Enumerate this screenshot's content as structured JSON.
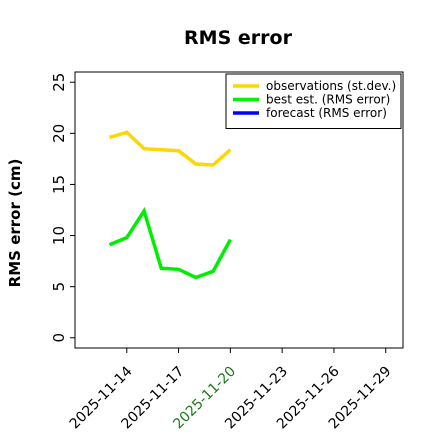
{
  "chart_data": {
    "type": "line",
    "title": "RMS error",
    "xlabel": "",
    "ylabel": "RMS error (cm)",
    "ylim": [
      -1,
      26
    ],
    "yticks": [
      0,
      5,
      10,
      15,
      20,
      25
    ],
    "xlim": [
      "2025-11-11",
      "2025-11-30"
    ],
    "xticks": [
      {
        "label": "2025-11-14",
        "color": "#000000"
      },
      {
        "label": "2025-11-17",
        "color": "#000000"
      },
      {
        "label": "2025-11-20",
        "color": "#1a7a1a"
      },
      {
        "label": "2025-11-23",
        "color": "#000000"
      },
      {
        "label": "2025-11-26",
        "color": "#000000"
      },
      {
        "label": "2025-11-29",
        "color": "#000000"
      }
    ],
    "grid": false,
    "legend_position": "top-right",
    "series": [
      {
        "name": "observations (st.dev.)",
        "color": "#FFD700",
        "x": [
          "2025-11-13",
          "2025-11-14",
          "2025-11-15",
          "2025-11-16",
          "2025-11-17",
          "2025-11-18",
          "2025-11-19",
          "2025-11-20"
        ],
        "values": [
          19.6,
          20.1,
          18.5,
          18.4,
          18.3,
          17.0,
          16.9,
          18.4
        ]
      },
      {
        "name": "best est. (RMS error)",
        "color": "#00EE00",
        "x": [
          "2025-11-13",
          "2025-11-14",
          "2025-11-15",
          "2025-11-16",
          "2025-11-17",
          "2025-11-18",
          "2025-11-19",
          "2025-11-20"
        ],
        "values": [
          9.1,
          9.8,
          12.4,
          6.8,
          6.7,
          5.9,
          6.5,
          9.6
        ]
      },
      {
        "name": "forecast (RMS error)",
        "color": "#0000FF",
        "x": [],
        "values": []
      }
    ]
  }
}
